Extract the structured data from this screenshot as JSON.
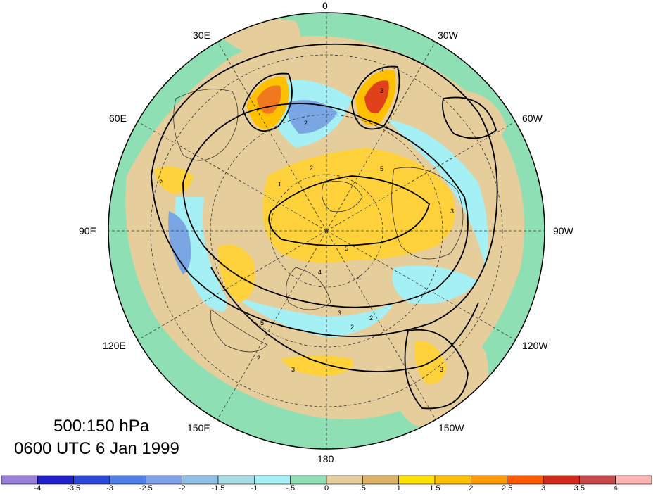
{
  "map": {
    "projection": "north-polar-stereographic",
    "longitude_labels": [
      {
        "text": "0",
        "pos": "top"
      },
      {
        "text": "30W",
        "pos": "upper-right-1"
      },
      {
        "text": "60W",
        "pos": "upper-right-2"
      },
      {
        "text": "90W",
        "pos": "right"
      },
      {
        "text": "120W",
        "pos": "lower-right-2"
      },
      {
        "text": "150W",
        "pos": "lower-right-1"
      },
      {
        "text": "180",
        "pos": "bottom"
      },
      {
        "text": "150E",
        "pos": "lower-left-1"
      },
      {
        "text": "120E",
        "pos": "lower-left-2"
      },
      {
        "text": "90E",
        "pos": "left"
      },
      {
        "text": "60E",
        "pos": "upper-left-2"
      },
      {
        "text": "30E",
        "pos": "upper-left-1"
      }
    ],
    "contour_labels": [
      "3",
      "3",
      "2",
      "2",
      "5",
      "5",
      "4",
      "4",
      "3",
      "2",
      "1",
      "3",
      "2",
      "3",
      "5",
      "2",
      "3",
      "2"
    ],
    "colors": {
      "ocean_neutral": "#8fdfb4",
      "light_pos": "#e6cd9c",
      "pos": "#ffd23c",
      "strong_pos": "#f29a1e",
      "neg": "#a8ecf4",
      "strong_neg": "#7aa6e4"
    }
  },
  "title": {
    "line1": "500:150 hPa",
    "line2": "0600 UTC 6 Jan 1999"
  },
  "colorbar": {
    "colors": [
      "#9b7fdc",
      "#2020c8",
      "#2b48d8",
      "#4f7fe8",
      "#7ea2ea",
      "#8fc0e6",
      "#a8dce6",
      "#a4f0f4",
      "#8fdfb4",
      "#e6cd9c",
      "#dcb266",
      "#ffe100",
      "#ffc000",
      "#ff9a00",
      "#ff5a00",
      "#cf2a1a",
      "#c84a48",
      "#ffb4b4"
    ],
    "labels": [
      "-4",
      "-3.5",
      "-3",
      "-2.5",
      "-2",
      "-1.5",
      "-1",
      "-.5",
      "0",
      ".5",
      "1",
      "1.5",
      "2",
      "2.5",
      "3",
      "3.5",
      "4"
    ]
  }
}
